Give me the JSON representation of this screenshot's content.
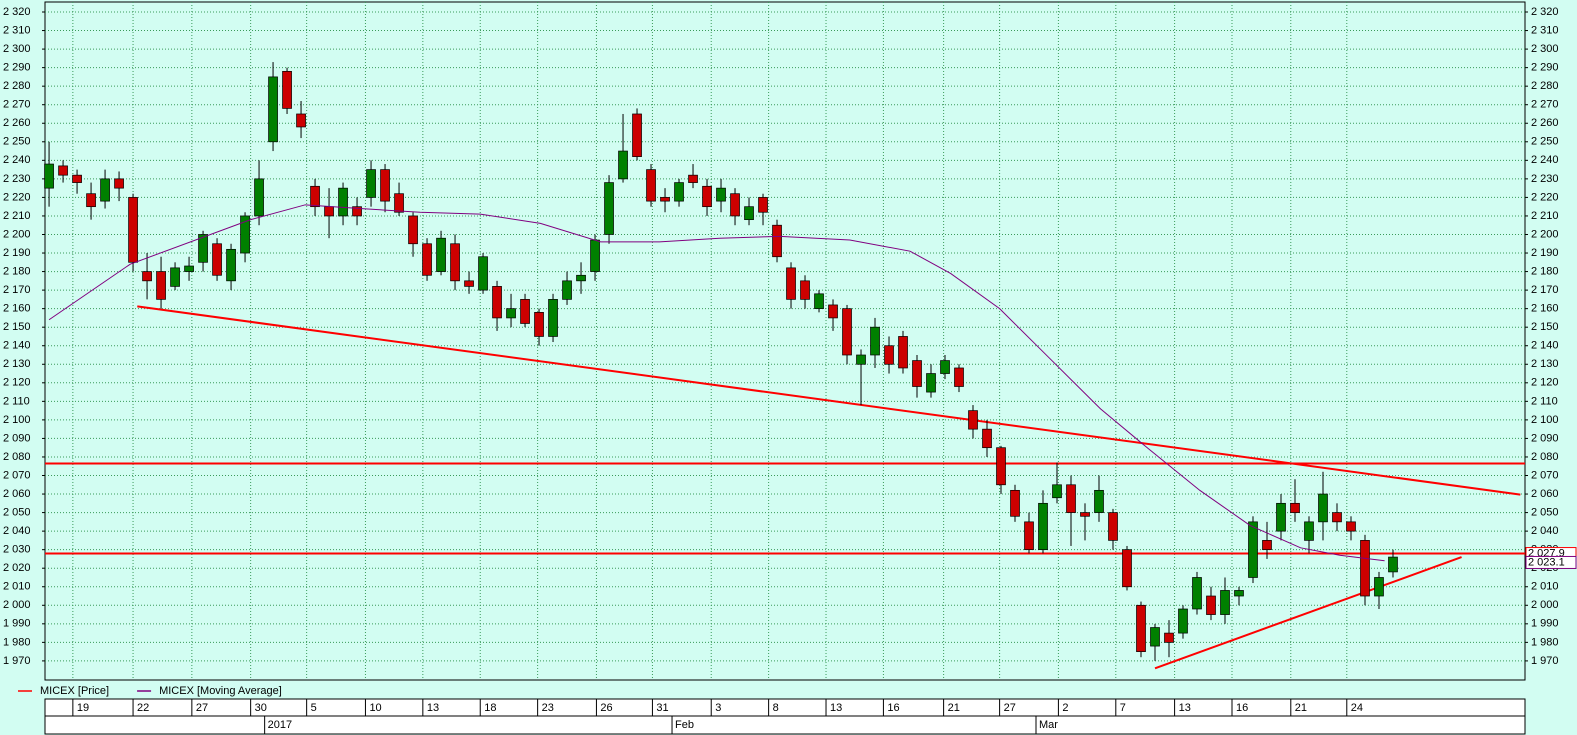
{
  "chart_data": {
    "type": "candlestick",
    "xlim": [
      -0.29,
      105.43
    ],
    "ylim": [
      1959.7,
      2325.4
    ],
    "grid": true,
    "yticks": [
      {
        "value": 1970,
        "label": "1 970"
      },
      {
        "value": 1980,
        "label": "1 980"
      },
      {
        "value": 1990,
        "label": "1 990"
      },
      {
        "value": 2000,
        "label": "2 000"
      },
      {
        "value": 2010,
        "label": "2 010"
      },
      {
        "value": 2020,
        "label": "2 020"
      },
      {
        "value": 2030,
        "label": "2 030"
      },
      {
        "value": 2040,
        "label": "2 040"
      },
      {
        "value": 2050,
        "label": "2 050"
      },
      {
        "value": 2060,
        "label": "2 060"
      },
      {
        "value": 2070,
        "label": "2 070"
      },
      {
        "value": 2080,
        "label": "2 080"
      },
      {
        "value": 2090,
        "label": "2 090"
      },
      {
        "value": 2100,
        "label": "2 100"
      },
      {
        "value": 2110,
        "label": "2 110"
      },
      {
        "value": 2120,
        "label": "2 120"
      },
      {
        "value": 2130,
        "label": "2 130"
      },
      {
        "value": 2140,
        "label": "2 140"
      },
      {
        "value": 2150,
        "label": "2 150"
      },
      {
        "value": 2160,
        "label": "2 160"
      },
      {
        "value": 2170,
        "label": "2 170"
      },
      {
        "value": 2180,
        "label": "2 180"
      },
      {
        "value": 2190,
        "label": "2 190"
      },
      {
        "value": 2200,
        "label": "2 200"
      },
      {
        "value": 2210,
        "label": "2 210"
      },
      {
        "value": 2220,
        "label": "2 220"
      },
      {
        "value": 2230,
        "label": "2 230"
      },
      {
        "value": 2240,
        "label": "2 240"
      },
      {
        "value": 2250,
        "label": "2 250"
      },
      {
        "value": 2260,
        "label": "2 260"
      },
      {
        "value": 2270,
        "label": "2 270"
      },
      {
        "value": 2280,
        "label": "2 280"
      },
      {
        "value": 2290,
        "label": "2 290"
      },
      {
        "value": 2300,
        "label": "2 300"
      },
      {
        "value": 2310,
        "label": "2 310"
      },
      {
        "value": 2320,
        "label": "2 320"
      }
    ],
    "xticks": [
      {
        "value": 1.7,
        "label": "19"
      },
      {
        "value": 6.0,
        "label": "22"
      },
      {
        "value": 10.2,
        "label": "27"
      },
      {
        "value": 14.4,
        "label": "30"
      },
      {
        "value": 18.4,
        "label": "5"
      },
      {
        "value": 22.6,
        "label": "10"
      },
      {
        "value": 26.7,
        "label": "13"
      },
      {
        "value": 30.8,
        "label": "18"
      },
      {
        "value": 34.9,
        "label": "23"
      },
      {
        "value": 39.1,
        "label": "26"
      },
      {
        "value": 43.1,
        "label": "31"
      },
      {
        "value": 47.3,
        "label": "3"
      },
      {
        "value": 51.4,
        "label": "8"
      },
      {
        "value": 55.5,
        "label": "13"
      },
      {
        "value": 59.6,
        "label": "16"
      },
      {
        "value": 63.9,
        "label": "21"
      },
      {
        "value": 67.9,
        "label": "27"
      },
      {
        "value": 72.1,
        "label": "2"
      },
      {
        "value": 76.2,
        "label": "7"
      },
      {
        "value": 80.4,
        "label": "13"
      },
      {
        "value": 84.5,
        "label": "16"
      },
      {
        "value": 88.7,
        "label": "21"
      },
      {
        "value": 92.7,
        "label": "24"
      }
    ],
    "month_ticks": [
      {
        "value": 15.4,
        "label": "2017"
      },
      {
        "value": 44.5,
        "label": "Feb"
      },
      {
        "value": 70.5,
        "label": "Mar"
      }
    ],
    "series": [
      {
        "name": "MICEX [Price]",
        "color": "#ff0000",
        "up_color": "#008000",
        "down_color": "#cc0000",
        "x": [
          0,
          1,
          2,
          3,
          4,
          5,
          6,
          7,
          8,
          9,
          10,
          11,
          12,
          13,
          14,
          15,
          16,
          17,
          18,
          19,
          20,
          21,
          22,
          23,
          24,
          25,
          26,
          27,
          28,
          29,
          30,
          31,
          32,
          33,
          34,
          35,
          36,
          37,
          38,
          39,
          40,
          41,
          42,
          43,
          44,
          45,
          46,
          47,
          48,
          49,
          50,
          51,
          52,
          53,
          54,
          55,
          56,
          57,
          58,
          59,
          60,
          61,
          62,
          63,
          64,
          65,
          66,
          67,
          68,
          69,
          70,
          71,
          72,
          73,
          74,
          75,
          76,
          77,
          78,
          79,
          80,
          81,
          82,
          83,
          84,
          85,
          86,
          87,
          88,
          89,
          90,
          91,
          92,
          93,
          94,
          95,
          96
        ],
        "open": [
          2225,
          2237,
          2232,
          2222,
          2218,
          2230,
          2220,
          2180,
          2180,
          2172,
          2180,
          2185,
          2195,
          2175,
          2190,
          2210,
          2250,
          2288,
          2265,
          2226,
          2215,
          2210,
          2215,
          2220,
          2235,
          2222,
          2210,
          2195,
          2180,
          2195,
          2175,
          2170,
          2172,
          2155,
          2165,
          2158,
          2145,
          2165,
          2175,
          2180,
          2200,
          2230,
          2265,
          2235,
          2220,
          2218,
          2232,
          2226,
          2218,
          2222,
          2208,
          2220,
          2205,
          2182,
          2175,
          2160,
          2162,
          2160,
          2130,
          2135,
          2140,
          2145,
          2132,
          2115,
          2125,
          2128,
          2105,
          2095,
          2085,
          2062,
          2045,
          2030,
          2058,
          2065,
          2050,
          2050,
          2050,
          2030,
          2000,
          1978,
          1985,
          1985,
          1998,
          2005,
          1995,
          2005,
          2015,
          2035,
          2040,
          2055,
          2035,
          2045,
          2050,
          2045,
          2035,
          2005,
          2018
        ],
        "high": [
          2250,
          2240,
          2235,
          2228,
          2235,
          2234,
          2222,
          2190,
          2188,
          2185,
          2188,
          2202,
          2198,
          2195,
          2212,
          2240,
          2293,
          2290,
          2272,
          2230,
          2225,
          2228,
          2220,
          2240,
          2238,
          2228,
          2212,
          2198,
          2202,
          2200,
          2180,
          2190,
          2175,
          2168,
          2168,
          2160,
          2168,
          2180,
          2185,
          2200,
          2232,
          2265,
          2268,
          2238,
          2225,
          2230,
          2238,
          2230,
          2230,
          2225,
          2220,
          2222,
          2208,
          2185,
          2178,
          2170,
          2165,
          2162,
          2138,
          2155,
          2145,
          2148,
          2135,
          2130,
          2135,
          2130,
          2108,
          2100,
          2086,
          2065,
          2050,
          2062,
          2077,
          2070,
          2055,
          2070,
          2052,
          2032,
          2002,
          1990,
          1992,
          2000,
          2018,
          2010,
          2015,
          2010,
          2048,
          2045,
          2060,
          2068,
          2048,
          2072,
          2055,
          2048,
          2038,
          2018,
          2030
        ],
        "low": [
          2215,
          2228,
          2222,
          2208,
          2214,
          2218,
          2180,
          2165,
          2160,
          2170,
          2175,
          2180,
          2175,
          2170,
          2185,
          2205,
          2245,
          2265,
          2252,
          2210,
          2198,
          2205,
          2205,
          2215,
          2212,
          2210,
          2188,
          2175,
          2178,
          2170,
          2168,
          2168,
          2148,
          2150,
          2150,
          2140,
          2142,
          2162,
          2168,
          2175,
          2195,
          2228,
          2240,
          2215,
          2212,
          2215,
          2225,
          2210,
          2212,
          2205,
          2205,
          2205,
          2185,
          2160,
          2160,
          2158,
          2148,
          2130,
          2108,
          2128,
          2125,
          2125,
          2112,
          2112,
          2122,
          2115,
          2090,
          2080,
          2060,
          2045,
          2028,
          2028,
          2055,
          2032,
          2035,
          2045,
          2030,
          2008,
          1972,
          1970,
          1972,
          1982,
          1995,
          1992,
          1990,
          2000,
          2012,
          2025,
          2035,
          2045,
          2028,
          2035,
          2040,
          2035,
          2000,
          1998,
          2015
        ],
        "close": [
          2238,
          2232,
          2228,
          2215,
          2230,
          2225,
          2185,
          2175,
          2165,
          2182,
          2183,
          2200,
          2178,
          2192,
          2210,
          2230,
          2285,
          2268,
          2258,
          2215,
          2210,
          2225,
          2210,
          2235,
          2218,
          2212,
          2195,
          2178,
          2198,
          2175,
          2172,
          2188,
          2155,
          2160,
          2152,
          2145,
          2165,
          2175,
          2178,
          2197,
          2228,
          2245,
          2242,
          2218,
          2218,
          2228,
          2228,
          2215,
          2225,
          2210,
          2215,
          2212,
          2188,
          2165,
          2165,
          2168,
          2155,
          2135,
          2135,
          2150,
          2130,
          2128,
          2118,
          2125,
          2132,
          2118,
          2095,
          2085,
          2065,
          2048,
          2030,
          2055,
          2065,
          2050,
          2048,
          2062,
          2035,
          2010,
          1975,
          1988,
          1980,
          1998,
          2015,
          1995,
          2008,
          2008,
          2045,
          2030,
          2055,
          2050,
          2045,
          2060,
          2045,
          2040,
          2005,
          2015,
          2026
        ]
      },
      {
        "name": "MICEX [Moving Average]",
        "color": "#800080",
        "x": [
          0,
          5.8,
          14.4,
          18.3,
          22.2,
          26.5,
          30.8,
          35.1,
          39.4,
          43.6,
          47.9,
          52.2,
          57.2,
          61.5,
          64.4,
          67.9,
          71.5,
          75.1,
          78.6,
          82.2,
          85.8,
          89.4,
          92.2,
          95.4
        ],
        "values": [
          2154,
          2184,
          2208,
          2216,
          2214,
          2212,
          2211,
          2206,
          2196,
          2196,
          2198,
          2199,
          2197,
          2191,
          2179,
          2160,
          2133,
          2106,
          2084,
          2062,
          2043,
          2031,
          2027,
          2024
        ]
      }
    ],
    "trend_lines": [
      {
        "x": [
          6.3,
          105.1
        ],
        "y": [
          2161.2,
          2059.7
        ],
        "color": "#ff0000"
      },
      {
        "x": [
          79.0,
          100.9
        ],
        "y": [
          1966,
          2026
        ],
        "color": "#ff0000"
      }
    ],
    "hlines": [
      {
        "value": 2076.5,
        "color": "#ff0000"
      },
      {
        "value": 2027.9,
        "color": "#ff0000"
      }
    ],
    "price_labels": [
      {
        "value": 2027.9,
        "label": "2 027.9",
        "color": "#ff0000"
      },
      {
        "value": 2023.1,
        "label": "2 023.1",
        "color": "#800080"
      }
    ]
  }
}
